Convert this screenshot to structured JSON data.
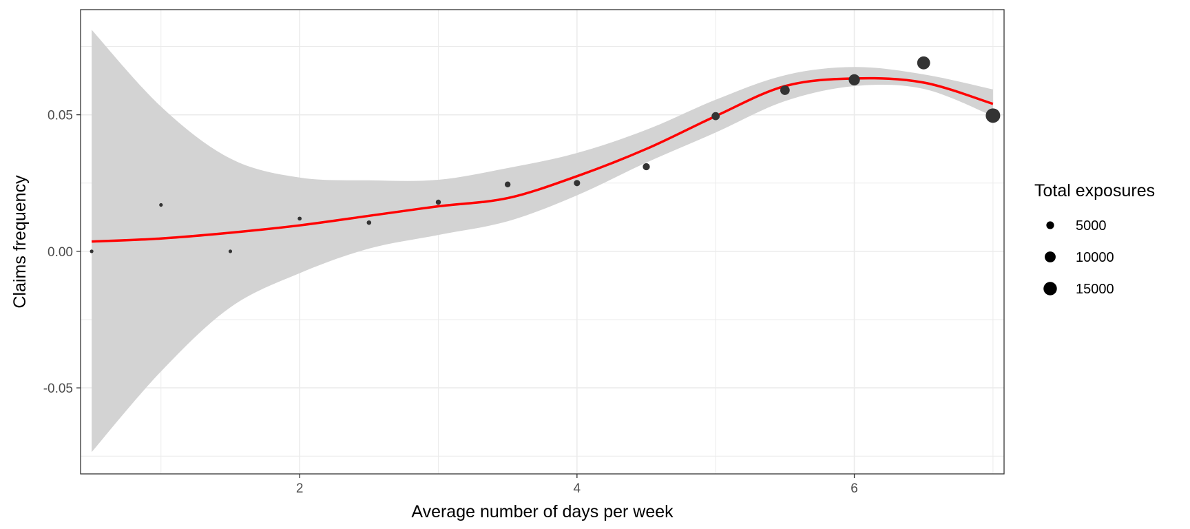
{
  "chart_data": {
    "type": "scatter",
    "xlabel": "Average number of days per week",
    "ylabel": "Claims frequency",
    "xlim": [
      0.42,
      7.08
    ],
    "ylim": [
      -0.0815,
      0.0885
    ],
    "x_ticks": [
      2,
      4,
      6
    ],
    "x_tick_labels": [
      "2",
      "4",
      "6"
    ],
    "y_ticks": [
      -0.05,
      0.0,
      0.05
    ],
    "y_tick_labels": [
      "-0.05",
      "0.00",
      "0.05"
    ],
    "grid": true,
    "legend_position": "right",
    "points": [
      {
        "x": 0.5,
        "y": 0.0,
        "exposure": 300
      },
      {
        "x": 1.0,
        "y": 0.017,
        "exposure": 700
      },
      {
        "x": 1.5,
        "y": 0.0,
        "exposure": 900
      },
      {
        "x": 2.0,
        "y": 0.012,
        "exposure": 1300
      },
      {
        "x": 2.5,
        "y": 0.0105,
        "exposure": 1700
      },
      {
        "x": 3.0,
        "y": 0.018,
        "exposure": 2200
      },
      {
        "x": 3.5,
        "y": 0.0245,
        "exposure": 2800
      },
      {
        "x": 4.0,
        "y": 0.025,
        "exposure": 3300
      },
      {
        "x": 4.5,
        "y": 0.031,
        "exposure": 4200
      },
      {
        "x": 5.0,
        "y": 0.0495,
        "exposure": 5500
      },
      {
        "x": 5.5,
        "y": 0.059,
        "exposure": 7500
      },
      {
        "x": 6.0,
        "y": 0.0628,
        "exposure": 10500
      },
      {
        "x": 6.5,
        "y": 0.069,
        "exposure": 14000
      },
      {
        "x": 7.0,
        "y": 0.0497,
        "exposure": 17500
      }
    ],
    "smooth": {
      "color": "#ff0000",
      "band_color": "#d3d3d3",
      "x": [
        0.5,
        1.0,
        1.5,
        2.0,
        2.5,
        3.0,
        3.5,
        4.0,
        4.5,
        5.0,
        5.5,
        6.0,
        6.5,
        7.0
      ],
      "y": [
        0.0036,
        0.0047,
        0.0068,
        0.0095,
        0.013,
        0.0165,
        0.0195,
        0.0275,
        0.0375,
        0.0495,
        0.0605,
        0.0633,
        0.0618,
        0.054
      ],
      "lower": [
        -0.0735,
        -0.044,
        -0.0205,
        -0.008,
        0.001,
        0.006,
        0.011,
        0.0205,
        0.0325,
        0.0435,
        0.055,
        0.0605,
        0.0595,
        0.0495
      ],
      "upper": [
        0.0811,
        0.053,
        0.034,
        0.027,
        0.026,
        0.0262,
        0.0305,
        0.036,
        0.0445,
        0.0555,
        0.0645,
        0.0675,
        0.0648,
        0.0593
      ]
    },
    "legend": {
      "title": "Total exposures",
      "entries": [
        {
          "label": "5000",
          "value": 5000
        },
        {
          "label": "10000",
          "value": 10000
        },
        {
          "label": "15000",
          "value": 15000
        }
      ]
    },
    "colors": {
      "points": "#333333",
      "grid": "#ebebeb",
      "panel_border": "#333333"
    }
  }
}
